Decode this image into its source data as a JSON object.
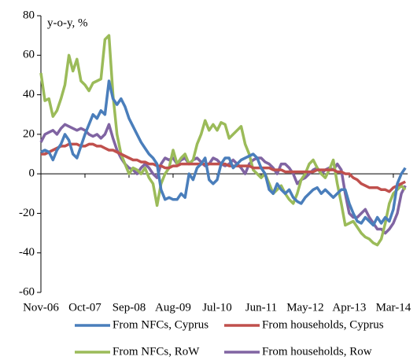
{
  "chart_data": {
    "type": "line",
    "annotation": "y-o-y, %",
    "categories": [
      "Nov-06",
      null,
      null,
      null,
      null,
      null,
      null,
      null,
      null,
      null,
      null,
      "Oct-07",
      null,
      null,
      null,
      null,
      null,
      null,
      null,
      null,
      null,
      null,
      "Sep-08",
      null,
      null,
      null,
      null,
      null,
      null,
      null,
      null,
      null,
      null,
      "Aug-09",
      null,
      null,
      null,
      null,
      null,
      null,
      null,
      null,
      null,
      null,
      "Jul-10",
      null,
      null,
      null,
      null,
      null,
      null,
      null,
      null,
      null,
      null,
      "Jun-11",
      null,
      null,
      null,
      null,
      null,
      null,
      null,
      null,
      null,
      null,
      "May-12",
      null,
      null,
      null,
      null,
      null,
      null,
      null,
      null,
      null,
      null,
      "Apr-13",
      null,
      null,
      null,
      null,
      null,
      null,
      null,
      null,
      null,
      null,
      "Mar-14",
      null,
      null,
      null
    ],
    "series": [
      {
        "name": "From NFCs, Cyprus",
        "color": "#4a7ebb",
        "values": [
          11,
          12,
          11,
          7,
          12,
          15,
          20,
          17,
          10,
          8,
          14,
          20,
          25,
          30,
          28,
          32,
          30,
          47,
          38,
          35,
          38,
          34,
          28,
          24,
          20,
          16,
          13,
          10,
          8,
          5,
          -8,
          -13,
          -12,
          -13,
          -13,
          -10,
          -12,
          0,
          -3,
          3,
          5,
          8,
          -3,
          -5,
          -3,
          5,
          8,
          8,
          3,
          5,
          7,
          8,
          9,
          10,
          8,
          3,
          0,
          -8,
          -10,
          -5,
          -8,
          -10,
          -8,
          -12,
          -14,
          -15,
          -12,
          -10,
          -8,
          -7,
          -10,
          -8,
          -10,
          -12,
          -10,
          -8,
          -8,
          -15,
          -20,
          -24,
          -25,
          -22,
          -24,
          -26,
          -22,
          -25,
          -22,
          -24,
          -18,
          -5,
          0,
          3
        ]
      },
      {
        "name": "From households, Cyprus",
        "color": "#c0504d",
        "values": [
          10,
          10,
          11,
          12,
          13,
          14,
          14,
          15,
          15,
          15,
          14,
          14,
          15,
          15,
          14,
          14,
          13,
          12,
          12,
          11,
          10,
          9,
          8,
          7,
          7,
          6,
          6,
          5,
          5,
          4,
          4,
          3,
          3,
          4,
          4,
          5,
          5,
          5,
          5,
          5,
          5,
          5,
          5,
          5,
          5,
          5,
          5,
          4,
          4,
          4,
          4,
          4,
          4,
          3,
          3,
          3,
          3,
          3,
          2,
          2,
          2,
          1,
          1,
          1,
          1,
          1,
          1,
          1,
          1,
          2,
          2,
          2,
          2,
          2,
          1,
          1,
          0,
          0,
          -2,
          -3,
          -5,
          -6,
          -7,
          -7,
          -7,
          -8,
          -8,
          -9,
          -7,
          -6,
          -5,
          -4
        ]
      },
      {
        "name": "From NFCs, RoW",
        "color": "#9bbb59",
        "values": [
          51,
          37,
          38,
          29,
          32,
          38,
          45,
          60,
          52,
          58,
          47,
          45,
          42,
          46,
          47,
          48,
          68,
          70,
          40,
          20,
          10,
          5,
          0,
          3,
          2,
          0,
          3,
          -2,
          -5,
          -16,
          -5,
          0,
          3,
          12,
          5,
          8,
          10,
          5,
          7,
          15,
          20,
          27,
          22,
          25,
          22,
          26,
          25,
          18,
          20,
          22,
          24,
          15,
          10,
          2,
          0,
          -2,
          0,
          -5,
          -10,
          -8,
          -6,
          -10,
          -13,
          -15,
          -10,
          -3,
          0,
          5,
          7,
          3,
          0,
          -2,
          2,
          7,
          -5,
          -15,
          -26,
          -25,
          -24,
          -27,
          -30,
          -32,
          -33,
          -35,
          -36,
          -33,
          -25,
          -15,
          -10,
          -8,
          -6,
          -8
        ]
      },
      {
        "name": "From households, Row",
        "color": "#8064a2",
        "values": [
          16,
          20,
          21,
          22,
          20,
          23,
          25,
          24,
          23,
          22,
          23,
          22,
          20,
          19,
          20,
          18,
          20,
          25,
          18,
          12,
          8,
          5,
          3,
          2,
          0,
          3,
          5,
          3,
          0,
          -2,
          5,
          8,
          7,
          8,
          5,
          7,
          8,
          5,
          7,
          8,
          6,
          4,
          5,
          8,
          7,
          5,
          4,
          5,
          7,
          5,
          3,
          0,
          5,
          7,
          8,
          8,
          6,
          5,
          3,
          0,
          5,
          5,
          3,
          0,
          -5,
          -3,
          -2,
          0,
          2,
          3,
          0,
          2,
          3,
          2,
          5,
          2,
          -10,
          -20,
          -22,
          -22,
          -20,
          -18,
          -22,
          -25,
          -28,
          -28,
          -30,
          -28,
          -25,
          -20,
          -10,
          -6
        ]
      }
    ],
    "ylim": [
      -60,
      80
    ],
    "yticks": [
      -60,
      -40,
      -20,
      0,
      20,
      40,
      60,
      80
    ],
    "grid": false,
    "legend": "bottom"
  }
}
